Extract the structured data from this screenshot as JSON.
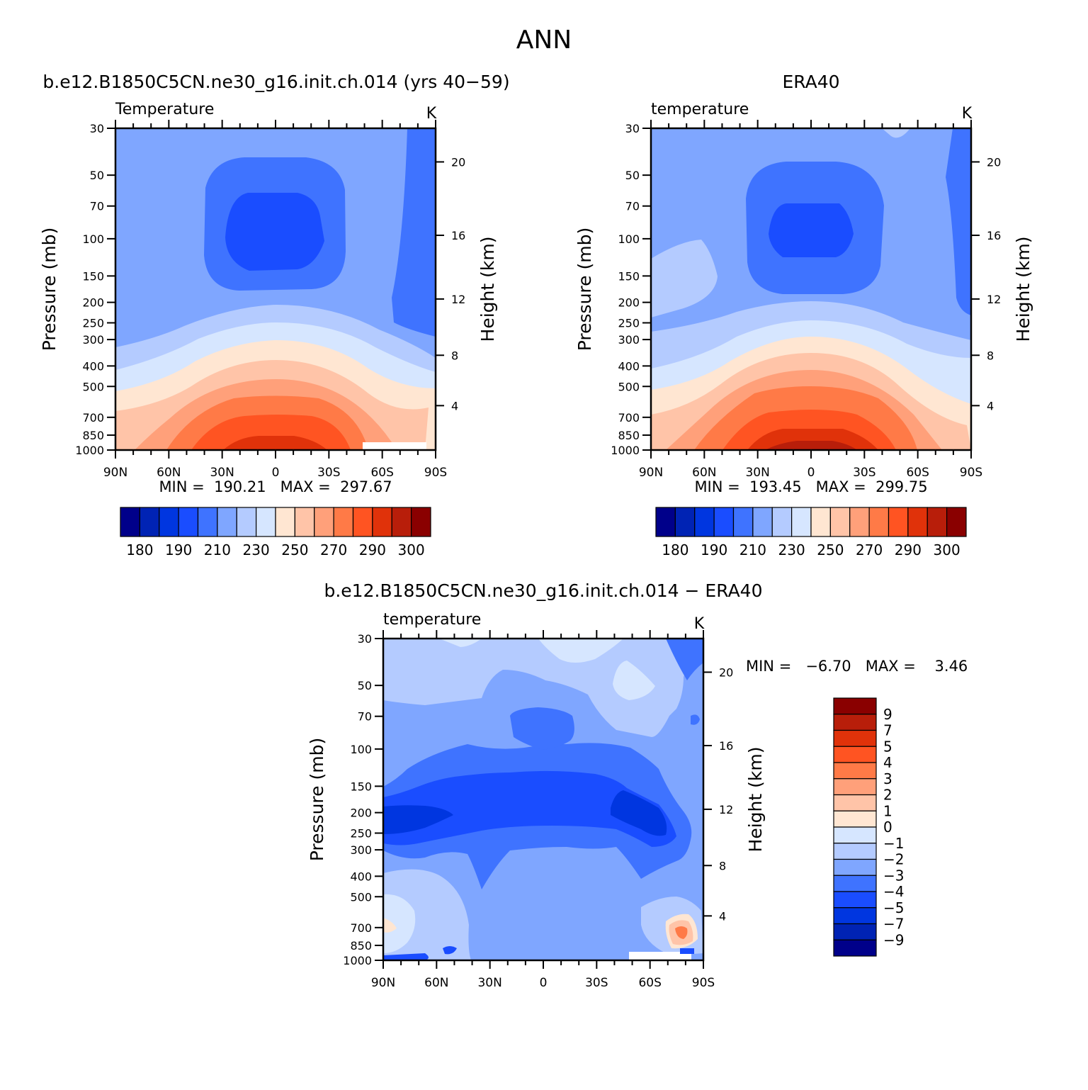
{
  "page_title": "ANN",
  "chart_data": [
    {
      "type": "heatmap",
      "panel": "model",
      "title": "b.e12.B1850C5CN.ne30_g16.init.ch.014 (yrs 40-59)",
      "display_title": "b.e12.B1850C5CN.ne30_g16.init.ch.014 (yrs 40−59)",
      "variable_label": "Temperature",
      "units": "K",
      "xlabel": "",
      "ylabel": "Pressure (mb)",
      "ylabel_right": "Height (km)",
      "x_ticks": [
        "90N",
        "60N",
        "30N",
        "0",
        "30S",
        "60S",
        "90S"
      ],
      "y_ticks": [
        30,
        50,
        70,
        100,
        150,
        200,
        250,
        300,
        400,
        500,
        700,
        850,
        1000
      ],
      "y_right_ticks": [
        4,
        8,
        12,
        16,
        20
      ],
      "ylim": [
        1000,
        30
      ],
      "y_scale": "log",
      "min_label": "MIN =  190.21   MAX =  297.67",
      "min": 190.21,
      "max": 297.67,
      "colorbar": {
        "orientation": "horizontal",
        "labels": [
          "180",
          "190",
          "210",
          "230",
          "250",
          "270",
          "290",
          "300"
        ],
        "colors": [
          "#00008a",
          "#0023b4",
          "#0036e0",
          "#1a4dff",
          "#3f73ff",
          "#7fa6ff",
          "#b4cbff",
          "#d6e6ff",
          "#ffe6d2",
          "#ffc4a8",
          "#ffa07a",
          "#ff7a47",
          "#ff5422",
          "#e0320a",
          "#b81e0a",
          "#8a0000"
        ]
      }
    },
    {
      "type": "heatmap",
      "panel": "observation",
      "title": "ERA40",
      "variable_label": "temperature",
      "units": "K",
      "xlabel": "",
      "ylabel": "Pressure (mb)",
      "ylabel_right": "Height (km)",
      "x_ticks": [
        "90N",
        "60N",
        "30N",
        "0",
        "30S",
        "60S",
        "90S"
      ],
      "y_ticks": [
        30,
        50,
        70,
        100,
        150,
        200,
        250,
        300,
        400,
        500,
        700,
        850,
        1000
      ],
      "y_right_ticks": [
        4,
        8,
        12,
        16,
        20
      ],
      "ylim": [
        1000,
        30
      ],
      "y_scale": "log",
      "min_label": "MIN =  193.45   MAX =  299.75",
      "min": 193.45,
      "max": 299.75,
      "colorbar": {
        "orientation": "horizontal",
        "labels": [
          "180",
          "190",
          "210",
          "230",
          "250",
          "270",
          "290",
          "300"
        ],
        "colors": [
          "#00008a",
          "#0023b4",
          "#0036e0",
          "#1a4dff",
          "#3f73ff",
          "#7fa6ff",
          "#b4cbff",
          "#d6e6ff",
          "#ffe6d2",
          "#ffc4a8",
          "#ffa07a",
          "#ff7a47",
          "#ff5422",
          "#e0320a",
          "#b81e0a",
          "#8a0000"
        ]
      }
    },
    {
      "type": "heatmap",
      "panel": "difference",
      "title": "b.e12.B1850C5CN.ne30_g16.init.ch.014 - ERA40",
      "display_title": "b.e12.B1850C5CN.ne30_g16.init.ch.014 − ERA40",
      "variable_label": "temperature",
      "units": "K",
      "xlabel": "",
      "ylabel": "Pressure (mb)",
      "ylabel_right": "Height (km)",
      "x_ticks": [
        "90N",
        "60N",
        "30N",
        "0",
        "30S",
        "60S",
        "90S"
      ],
      "y_ticks": [
        30,
        50,
        70,
        100,
        150,
        200,
        250,
        300,
        400,
        500,
        700,
        850,
        1000
      ],
      "y_right_ticks": [
        4,
        8,
        12,
        16,
        20
      ],
      "ylim": [
        1000,
        30
      ],
      "y_scale": "log",
      "min_label": "MIN =   −6.70   MAX =    3.46",
      "min": -6.7,
      "max": 3.46,
      "colorbar": {
        "orientation": "vertical",
        "labels": [
          "9",
          "7",
          "5",
          "4",
          "3",
          "2",
          "1",
          "0",
          "−1",
          "−2",
          "−3",
          "−4",
          "−5",
          "−7",
          "−9"
        ],
        "colors": [
          "#8a0000",
          "#b81e0a",
          "#e0320a",
          "#ff5422",
          "#ff7a47",
          "#ffa07a",
          "#ffc4a8",
          "#ffe6d2",
          "#d6e6ff",
          "#b4cbff",
          "#7fa6ff",
          "#3f73ff",
          "#1a4dff",
          "#0036e0",
          "#0023b4",
          "#00008a"
        ]
      }
    }
  ]
}
